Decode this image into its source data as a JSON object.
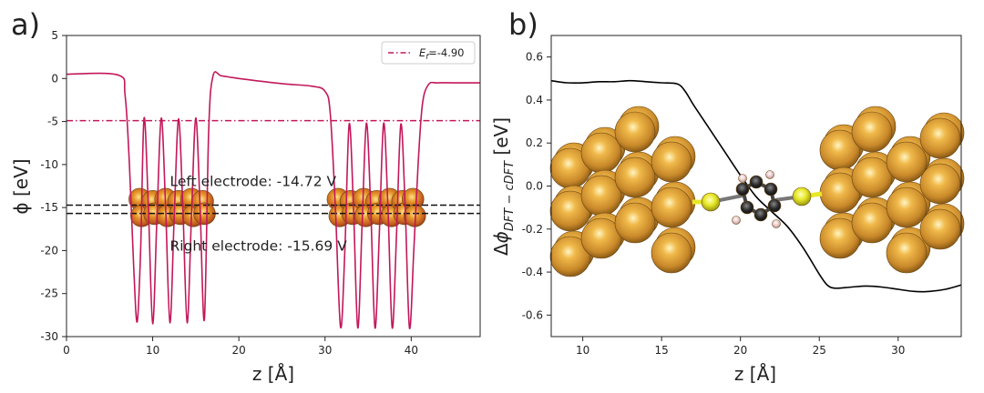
{
  "chart_data": [
    {
      "type": "line",
      "panel_label": "a)",
      "xlabel": "z [Å]",
      "ylabel": "ϕ [eV]",
      "xlim": [
        0,
        48
      ],
      "ylim": [
        -30,
        5
      ],
      "xticks": [
        0,
        10,
        20,
        30,
        40
      ],
      "yticks": [
        5,
        0,
        -5,
        -10,
        -15,
        -20,
        -25,
        -30
      ],
      "grid": false,
      "legend": {
        "position": "top-right",
        "label": "Ef=-4.90"
      },
      "series": [
        {
          "kind": "potential",
          "color": "#c2185b",
          "x": [
            0.0,
            6.0,
            6.8,
            7.3,
            7.8,
            8.2,
            8.6,
            9.0,
            9.5,
            10.0,
            10.5,
            11.0,
            11.5,
            12.0,
            12.5,
            13.0,
            13.5,
            14.0,
            14.5,
            15.0,
            15.5,
            16.0,
            16.5,
            17.0,
            18.0,
            20.0,
            25.0,
            28.5,
            30.0,
            30.6,
            31.2,
            31.8,
            32.3,
            32.8,
            33.3,
            33.8,
            34.3,
            34.8,
            35.3,
            35.8,
            36.3,
            36.8,
            37.3,
            37.8,
            38.3,
            38.8,
            39.3,
            39.8,
            40.3,
            40.8,
            41.3,
            42.0,
            43.0,
            45.0,
            48.0
          ],
          "y": [
            0.5,
            0.4,
            -2.0,
            -10.0,
            -22.0,
            -28.3,
            -20.0,
            -4.6,
            -15.0,
            -28.5,
            -16.0,
            -4.6,
            -15.0,
            -28.4,
            -16.0,
            -4.7,
            -15.0,
            -28.4,
            -16.0,
            -4.6,
            -15.0,
            -28.0,
            -6.0,
            0.3,
            0.3,
            0.0,
            -0.6,
            -0.9,
            -1.5,
            -4.0,
            -15.0,
            -28.9,
            -20.0,
            -5.3,
            -15.0,
            -29.0,
            -17.0,
            -5.2,
            -15.0,
            -29.0,
            -18.0,
            -5.2,
            -15.0,
            -29.0,
            -18.0,
            -5.3,
            -15.0,
            -29.0,
            -20.0,
            -10.0,
            -3.0,
            -0.7,
            -0.5,
            -0.5,
            -0.5
          ]
        },
        {
          "kind": "hline",
          "y": -4.9,
          "color": "#c2185b",
          "style": "dashdot",
          "label": "Ef=-4.90"
        },
        {
          "kind": "hline",
          "y": -14.72,
          "color": "#111111",
          "style": "dashed"
        },
        {
          "kind": "hline",
          "y": -15.69,
          "color": "#111111",
          "style": "dashed"
        }
      ],
      "annotations": [
        {
          "text": "Left electrode: -14.72 V",
          "x": 12.0,
          "y": -12.5
        },
        {
          "text": "Right electrode: -15.69 V",
          "x": 12.0,
          "y": -20.0
        }
      ],
      "atoms": {
        "color": "#d9a13a",
        "left_x": [
          8.5,
          10.0,
          11.5,
          13.0,
          14.5,
          15.8
        ],
        "right_x": [
          31.5,
          33.0,
          34.5,
          36.0,
          37.5,
          39.0,
          40.2
        ],
        "y": -15.0
      }
    },
    {
      "type": "line",
      "panel_label": "b)",
      "xlabel": "z [Å]",
      "ylabel": "Δϕ DFT − cDFT [eV]",
      "xlim": [
        8,
        34
      ],
      "ylim": [
        -0.7,
        0.7
      ],
      "xticks": [
        10,
        15,
        20,
        25,
        30
      ],
      "yticks": [
        0.6,
        0.4,
        0.2,
        0.0,
        -0.2,
        -0.4,
        -0.6
      ],
      "grid": false,
      "series": [
        {
          "kind": "difference",
          "color": "#000000",
          "x": [
            8,
            9,
            10,
            11,
            12,
            13,
            14,
            15,
            16,
            16.5,
            17,
            18,
            19,
            20,
            21,
            22,
            23,
            24,
            25,
            25.5,
            26,
            27,
            28,
            29,
            30,
            31,
            32,
            33,
            34
          ],
          "y": [
            0.49,
            0.48,
            0.48,
            0.485,
            0.485,
            0.49,
            0.485,
            0.48,
            0.475,
            0.44,
            0.38,
            0.27,
            0.16,
            0.05,
            -0.05,
            -0.12,
            -0.19,
            -0.29,
            -0.41,
            -0.46,
            -0.475,
            -0.47,
            -0.465,
            -0.47,
            -0.48,
            -0.49,
            -0.49,
            -0.48,
            -0.46
          ]
        }
      ],
      "molecule": {
        "gold_color": "#d9a13a",
        "sulfur_color": "#e8e82a",
        "carbon_color": "#2b2b2b",
        "hydrogen_color": "#e8c7c7"
      }
    }
  ]
}
